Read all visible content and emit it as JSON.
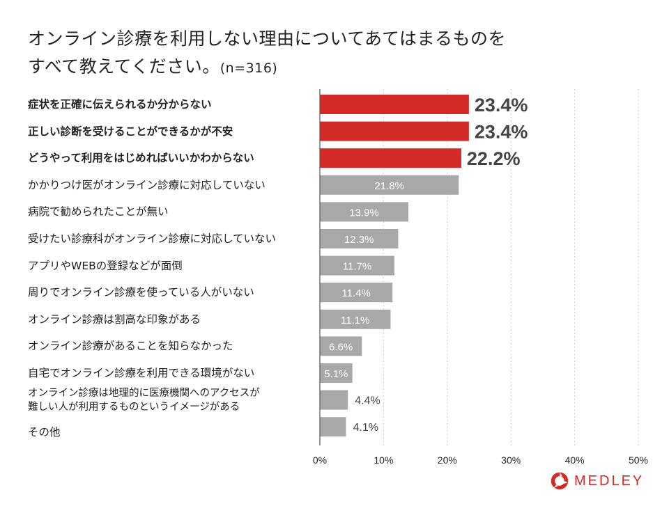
{
  "title": {
    "line1": "オンライン診療を利用しない理由についてあてはまるものを",
    "line2": "すべて教えてください。",
    "n": "(n=316)"
  },
  "colors": {
    "highlight": "#d32b27",
    "normal": "#a8a8a8",
    "axis": "#555555",
    "grid": "#cccccc"
  },
  "chart_data": {
    "type": "bar",
    "orientation": "horizontal",
    "title": "オンライン診療を利用しない理由についてあてはまるものをすべて教えてください。(n=316)",
    "xlabel": "",
    "ylabel": "",
    "xlim": [
      0,
      50
    ],
    "grid": true,
    "ticks": [
      "0%",
      "10%",
      "20%",
      "30%",
      "40%",
      "50%"
    ],
    "tick_values": [
      0,
      10,
      20,
      30,
      40,
      50
    ],
    "categories": [
      "症状を正確に伝えられるか分からない",
      "正しい診断を受けることができるかが不安",
      "どうやって利用をはじめればいいかわからない",
      "かかりつけ医がオンライン診療に対応していない",
      "病院で勧められたことが無い",
      "受けたい診療科がオンライン診療に対応していない",
      "アプリやWEBの登録などが面倒",
      "周りでオンライン診療を使っている人がいない",
      "オンライン診療は割高な印象がある",
      "オンライン診療があることを知らなかった",
      "自宅でオンライン診療を利用できる環境がない",
      "オンライン診療は地理的に医療機関へのアクセスが\n難しい人が利用するものというイメージがある",
      "その他"
    ],
    "category_lines": [
      [
        "症状を正確に伝えられるか分からない"
      ],
      [
        "正しい診断を受けることができるかが不安"
      ],
      [
        "どうやって利用をはじめればいいかわからない"
      ],
      [
        "かかりつけ医がオンライン診療に対応していない"
      ],
      [
        "病院で勧められたことが無い"
      ],
      [
        "受けたい診療科がオンライン診療に対応していない"
      ],
      [
        "アプリやWEBの登録などが面倒"
      ],
      [
        "周りでオンライン診療を使っている人がいない"
      ],
      [
        "オンライン診療は割高な印象がある"
      ],
      [
        "オンライン診療があることを知らなかった"
      ],
      [
        "自宅でオンライン診療を利用できる環境がない"
      ],
      [
        "オンライン診療は地理的に医療機関へのアクセスが",
        "難しい人が利用するものというイメージがある"
      ],
      [
        "その他"
      ]
    ],
    "values": [
      23.4,
      23.4,
      22.2,
      21.8,
      13.9,
      12.3,
      11.7,
      11.4,
      11.1,
      6.6,
      5.1,
      4.4,
      4.1
    ],
    "value_labels": [
      "23.4%",
      "23.4%",
      "22.2%",
      "21.8%",
      "13.9%",
      "12.3%",
      "11.7%",
      "11.4%",
      "11.1%",
      "6.6%",
      "5.1%",
      "4.4%",
      "4.1%"
    ],
    "highlighted": [
      true,
      true,
      true,
      false,
      false,
      false,
      false,
      false,
      false,
      false,
      false,
      false,
      false
    ]
  },
  "brand": {
    "name": "MEDLEY"
  }
}
